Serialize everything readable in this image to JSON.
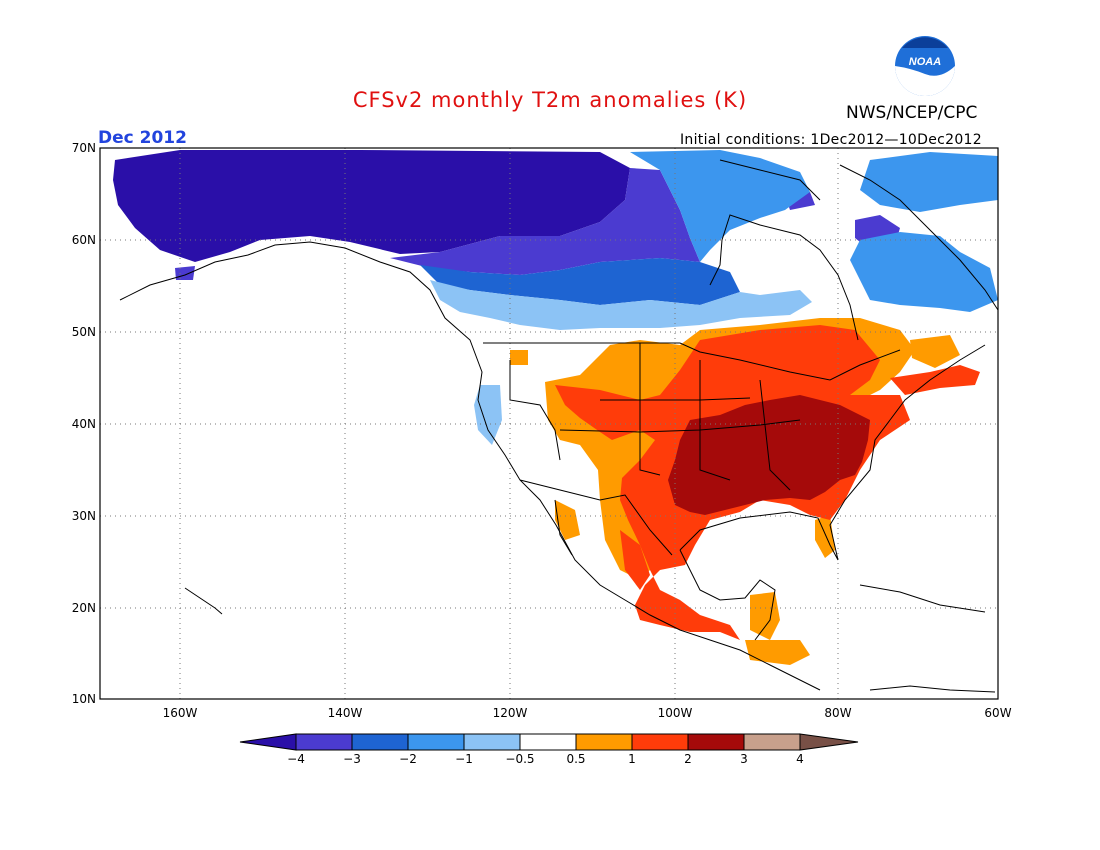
{
  "title": "CFSv2 monthly T2m anomalies (K)",
  "agency": "NWS/NCEP/CPC",
  "logo_text": "NOAA",
  "valid_month": "Dec 2012",
  "initial_conditions": "Initial conditions: 1Dec2012—10Dec2012",
  "lat_labels": [
    "70N",
    "60N",
    "50N",
    "40N",
    "30N",
    "20N",
    "10N"
  ],
  "lon_labels": [
    "160W",
    "140W",
    "120W",
    "100W",
    "80W",
    "60W"
  ],
  "colorbar": {
    "labels": [
      "−4",
      "−3",
      "−2",
      "−1",
      "−0.5",
      "0.5",
      "1",
      "2",
      "3",
      "4"
    ],
    "colors": [
      "#2a0fa8",
      "#4b3bd0",
      "#1e64d2",
      "#3c96ee",
      "#8cc3f5",
      "#ffffff",
      "#ff9b00",
      "#ff3c0a",
      "#a50a0a",
      "#c8a08c",
      "#785046"
    ]
  }
}
